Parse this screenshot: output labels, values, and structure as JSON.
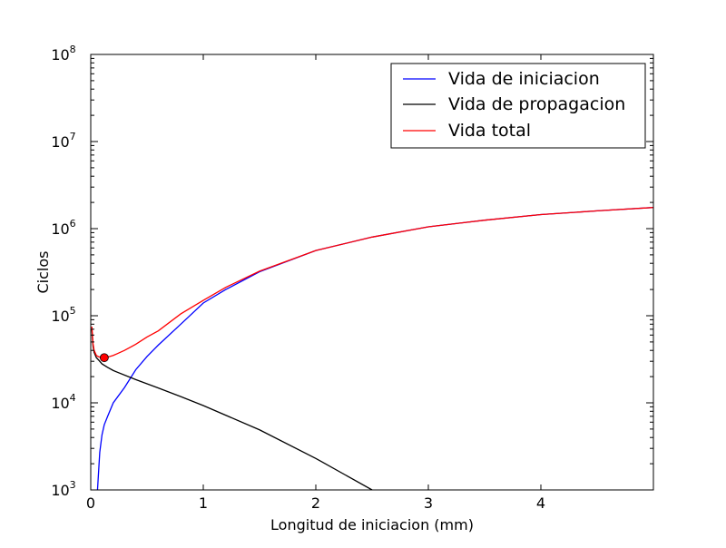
{
  "chart_data": {
    "type": "line",
    "xlabel": "Longitud de iniciacion (mm)",
    "ylabel": "Ciclos",
    "xlim": [
      0,
      5
    ],
    "ylim": [
      1000,
      100000000
    ],
    "yscale": "log",
    "grid": false,
    "legend_position": "top-right",
    "x_ticks": [
      {
        "value": 0,
        "label": "0"
      },
      {
        "value": 1,
        "label": "1"
      },
      {
        "value": 2,
        "label": "2"
      },
      {
        "value": 3,
        "label": "3"
      },
      {
        "value": 4,
        "label": "4"
      }
    ],
    "y_ticks": [
      {
        "value": 1000,
        "base": "10",
        "exp": "3"
      },
      {
        "value": 10000,
        "base": "10",
        "exp": "4"
      },
      {
        "value": 100000,
        "base": "10",
        "exp": "5"
      },
      {
        "value": 1000000,
        "base": "10",
        "exp": "6"
      },
      {
        "value": 10000000,
        "base": "10",
        "exp": "7"
      },
      {
        "value": 100000000,
        "base": "10",
        "exp": "8"
      }
    ],
    "series": [
      {
        "name": "Vida de iniciacion",
        "color": "#0000ff",
        "x": [
          0.06,
          0.08,
          0.1,
          0.12,
          0.15,
          0.2,
          0.3,
          0.4,
          0.5,
          0.6,
          0.8,
          1.0,
          1.2,
          1.5,
          2.0,
          2.5,
          3.0,
          3.5,
          4.0,
          4.5,
          5.0
        ],
        "y": [
          1000,
          2700,
          4300,
          5600,
          7000,
          10000,
          15000,
          24000,
          34000,
          46000,
          80000,
          140000,
          200000,
          320000,
          560000,
          800000,
          1050000,
          1250000,
          1450000,
          1600000,
          1750000
        ]
      },
      {
        "name": "Vida de propagacion",
        "color": "#000000",
        "x": [
          0.01,
          0.02,
          0.03,
          0.05,
          0.07,
          0.1,
          0.15,
          0.2,
          0.4,
          0.6,
          0.8,
          1.0,
          1.5,
          2.0,
          2.5
        ],
        "y": [
          70000,
          45000,
          38000,
          33000,
          31000,
          28000,
          25500,
          23500,
          18500,
          14800,
          11800,
          9300,
          4900,
          2300,
          1000
        ]
      },
      {
        "name": "Vida total",
        "color": "#ff0000",
        "x": [
          0.01,
          0.02,
          0.03,
          0.05,
          0.07,
          0.1,
          0.15,
          0.2,
          0.3,
          0.4,
          0.5,
          0.6,
          0.8,
          1.0,
          1.2,
          1.5,
          2.0,
          2.5,
          3.0,
          3.5,
          4.0,
          4.5,
          5.0
        ],
        "y": [
          75000,
          48000,
          40000,
          35000,
          33800,
          33000,
          33500,
          35000,
          40000,
          47000,
          57000,
          67000,
          105000,
          150000,
          212000,
          325000,
          560000,
          800000,
          1050000,
          1250000,
          1450000,
          1600000,
          1750000
        ]
      }
    ],
    "marker": {
      "x": 0.12,
      "y": 33000,
      "color": "#ff0000"
    }
  }
}
